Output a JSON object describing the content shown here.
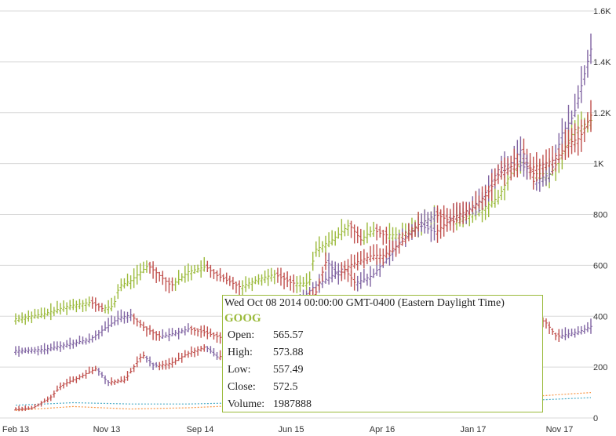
{
  "chart_data": {
    "type": "ohlc",
    "x_ticks": [
      "Feb 13",
      "Nov 13",
      "Sep 14",
      "Jun 15",
      "Apr 16",
      "Jan 17",
      "Nov 17"
    ],
    "y_ticks": [
      "0",
      "200",
      "400",
      "600",
      "800",
      "1K",
      "1.2K",
      "1.4K",
      "1.6K"
    ],
    "ylim": [
      0,
      1600
    ],
    "grid": true,
    "colors": {
      "grid": "#d9d9d9",
      "up_green": "#9bba3b",
      "down_red": "#c0504d",
      "up_purple": "#8064a2",
      "down_red2": "#c0504d",
      "low_blue": "#4bacc6",
      "low_orange": "#f79646"
    },
    "series": [
      {
        "values": [
          [
            0.0,
            390
          ],
          [
            0.05,
            410
          ],
          [
            0.09,
            440
          ],
          [
            0.13,
            455
          ],
          [
            0.15,
            430
          ],
          [
            0.17,
            440
          ],
          [
            0.18,
            520
          ],
          [
            0.2,
            540
          ],
          [
            0.23,
            600
          ],
          [
            0.25,
            560
          ],
          [
            0.27,
            520
          ],
          [
            0.3,
            575
          ],
          [
            0.33,
            595
          ],
          [
            0.35,
            560
          ],
          [
            0.39,
            515
          ],
          [
            0.42,
            545
          ],
          [
            0.45,
            565
          ],
          [
            0.48,
            530
          ],
          [
            0.51,
            530
          ],
          [
            0.52,
            660
          ],
          [
            0.55,
            700
          ],
          [
            0.58,
            760
          ],
          [
            0.6,
            700
          ],
          [
            0.62,
            740
          ],
          [
            0.64,
            720
          ],
          [
            0.67,
            720
          ],
          [
            0.7,
            760
          ],
          [
            0.73,
            800
          ],
          [
            0.76,
            770
          ],
          [
            0.78,
            790
          ],
          [
            0.81,
            820
          ],
          [
            0.84,
            870
          ],
          [
            0.86,
            960
          ],
          [
            0.88,
            1010
          ],
          [
            0.9,
            960
          ],
          [
            0.93,
            960
          ],
          [
            0.95,
            1040
          ],
          [
            0.97,
            1130
          ],
          [
            1.0,
            1170
          ]
        ]
      },
      {
        "values": [
          [
            0.0,
            265
          ],
          [
            0.05,
            270
          ],
          [
            0.09,
            290
          ],
          [
            0.13,
            310
          ],
          [
            0.15,
            345
          ],
          [
            0.18,
            395
          ],
          [
            0.2,
            405
          ],
          [
            0.22,
            360
          ],
          [
            0.25,
            320
          ],
          [
            0.27,
            330
          ],
          [
            0.3,
            350
          ],
          [
            0.33,
            335
          ],
          [
            0.35,
            320
          ],
          [
            0.38,
            300
          ],
          [
            0.4,
            360
          ],
          [
            0.42,
            340
          ],
          [
            0.45,
            360
          ],
          [
            0.47,
            430
          ],
          [
            0.5,
            475
          ],
          [
            0.52,
            520
          ],
          [
            0.55,
            560
          ],
          [
            0.57,
            590
          ],
          [
            0.59,
            530
          ],
          [
            0.62,
            560
          ],
          [
            0.65,
            640
          ],
          [
            0.67,
            700
          ],
          [
            0.7,
            760
          ],
          [
            0.73,
            800
          ],
          [
            0.75,
            780
          ],
          [
            0.78,
            810
          ],
          [
            0.81,
            860
          ],
          [
            0.84,
            980
          ],
          [
            0.86,
            1000
          ],
          [
            0.88,
            1060
          ],
          [
            0.9,
            930
          ],
          [
            0.93,
            960
          ],
          [
            0.95,
            1120
          ],
          [
            0.97,
            1190
          ],
          [
            1.0,
            1450
          ]
        ]
      },
      {
        "values": [
          [
            0.0,
            35
          ],
          [
            0.03,
            40
          ],
          [
            0.06,
            80
          ],
          [
            0.08,
            130
          ],
          [
            0.11,
            160
          ],
          [
            0.14,
            195
          ],
          [
            0.16,
            140
          ],
          [
            0.19,
            150
          ],
          [
            0.22,
            250
          ],
          [
            0.24,
            205
          ],
          [
            0.27,
            215
          ],
          [
            0.3,
            255
          ],
          [
            0.33,
            280
          ],
          [
            0.35,
            240
          ],
          [
            0.38,
            250
          ],
          [
            0.4,
            290
          ],
          [
            0.42,
            320
          ],
          [
            0.45,
            360
          ],
          [
            0.47,
            390
          ],
          [
            0.49,
            440
          ],
          [
            0.52,
            480
          ],
          [
            0.54,
            620
          ],
          [
            0.56,
            560
          ],
          [
            0.58,
            600
          ],
          [
            0.6,
            620
          ],
          [
            0.62,
            640
          ],
          [
            0.64,
            640
          ],
          [
            0.67,
            690
          ],
          [
            0.7,
            760
          ],
          [
            0.73,
            730
          ],
          [
            0.76,
            790
          ],
          [
            0.79,
            820
          ],
          [
            0.82,
            880
          ],
          [
            0.84,
            960
          ],
          [
            0.87,
            1000
          ],
          [
            0.89,
            980
          ],
          [
            0.92,
            1000
          ],
          [
            0.94,
            1020
          ],
          [
            0.96,
            1080
          ],
          [
            0.98,
            1100
          ],
          [
            1.0,
            1190
          ]
        ]
      },
      {
        "values": [
          [
            0.45,
            370
          ],
          [
            0.48,
            400
          ],
          [
            0.5,
            360
          ],
          [
            0.53,
            340
          ],
          [
            0.56,
            360
          ],
          [
            0.58,
            380
          ],
          [
            0.6,
            390
          ],
          [
            0.62,
            350
          ],
          [
            0.65,
            340
          ],
          [
            0.67,
            330
          ],
          [
            0.7,
            340
          ],
          [
            0.73,
            350
          ],
          [
            0.76,
            340
          ],
          [
            0.79,
            360
          ],
          [
            0.82,
            370
          ],
          [
            0.85,
            350
          ],
          [
            0.88,
            380
          ],
          [
            0.9,
            390
          ],
          [
            0.92,
            380
          ],
          [
            0.94,
            320
          ],
          [
            0.96,
            330
          ],
          [
            0.98,
            340
          ],
          [
            1.0,
            360
          ]
        ]
      }
    ],
    "low_lines": [
      {
        "values": [
          [
            0.0,
            50
          ],
          [
            0.1,
            60
          ],
          [
            0.2,
            55
          ],
          [
            0.3,
            55
          ],
          [
            0.4,
            60
          ],
          [
            0.5,
            55
          ],
          [
            0.6,
            55
          ],
          [
            0.7,
            60
          ],
          [
            0.8,
            60
          ],
          [
            0.9,
            70
          ],
          [
            1.0,
            80
          ]
        ]
      },
      {
        "values": [
          [
            0.0,
            30
          ],
          [
            0.1,
            45
          ],
          [
            0.2,
            35
          ],
          [
            0.3,
            40
          ],
          [
            0.4,
            50
          ],
          [
            0.5,
            55
          ],
          [
            0.6,
            60
          ],
          [
            0.7,
            65
          ],
          [
            0.8,
            75
          ],
          [
            0.9,
            85
          ],
          [
            1.0,
            100
          ]
        ]
      }
    ]
  },
  "tooltip": {
    "date": "Wed Oct 08 2014 00:00:00 GMT-0400 (Eastern Daylight Time)",
    "symbol": "GOOG",
    "rows": [
      {
        "label": "Open:",
        "value": "565.57"
      },
      {
        "label": "High:",
        "value": "573.88"
      },
      {
        "label": "Low:",
        "value": "557.49"
      },
      {
        "label": "Close:",
        "value": "572.5"
      },
      {
        "label": "Volume:",
        "value": "1987888"
      }
    ]
  }
}
